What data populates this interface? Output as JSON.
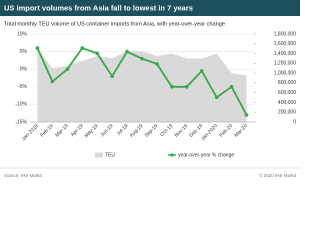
{
  "chart_data": {
    "type": "combo",
    "title": "US import volumes from Asia fall to lowest in 7 years",
    "subtitle": "Total monthly TEU volume of US container imports from Asia, with year-over-year change",
    "categories": [
      "Jan-2019",
      "Feb-19",
      "Mar-19",
      "Apr-19",
      "May-19",
      "Jun-19",
      "Jul-19",
      "Aug-19",
      "Sep-19",
      "Oct-19",
      "Nov-19",
      "Dec-19",
      "Jan-2020",
      "Feb-20",
      "Mar-20"
    ],
    "series": [
      {
        "name": "TEU",
        "type": "area",
        "axis": "y2",
        "color": "#d9d9d9",
        "values": [
          1500000,
          1100000,
          1150000,
          1250000,
          1350000,
          1300000,
          1450000,
          1450000,
          1350000,
          1400000,
          1300000,
          1300000,
          1400000,
          1000000,
          950000
        ]
      },
      {
        "name": "year-over-year % change",
        "type": "line",
        "axis": "y",
        "color": "#3aa84a",
        "values": [
          6,
          -3.5,
          0,
          6,
          4.5,
          -2,
          5,
          3,
          1.5,
          -5,
          -5,
          -0.5,
          -8,
          -5,
          -13
        ]
      }
    ],
    "ylim": [
      -15,
      10
    ],
    "yticks": [
      {
        "value": -15,
        "label": "-15%"
      },
      {
        "value": -10,
        "label": "-10%"
      },
      {
        "value": -5,
        "label": "-5%"
      },
      {
        "value": 0,
        "label": "0%"
      },
      {
        "value": 5,
        "label": "5%"
      },
      {
        "value": 10,
        "label": "10%"
      }
    ],
    "y2lim": [
      0,
      1800000
    ],
    "y2ticks": [
      0,
      {
        "value": 200000,
        "label": "200,000"
      },
      {
        "value": 400000,
        "label": "400,000"
      },
      {
        "value": 600000,
        "label": "600,000"
      },
      {
        "value": 800000,
        "label": "800,000"
      },
      {
        "value": 1000000,
        "label": "1,000,000"
      },
      {
        "value": 1200000,
        "label": "1,200,000"
      },
      {
        "value": 1400000,
        "label": "1,400,000"
      },
      {
        "value": 1600000,
        "label": "1,600,000"
      },
      {
        "value": 1800000,
        "label": "1,800,000"
      }
    ],
    "grid": true,
    "source": "Source: IHS Markit",
    "copyright": "© 2020 IHS Markit"
  }
}
